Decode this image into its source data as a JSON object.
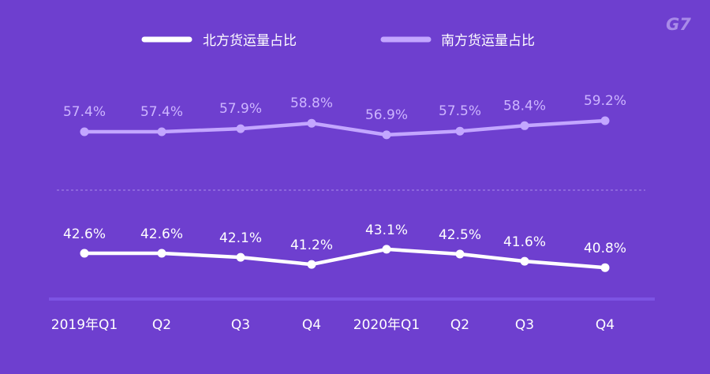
{
  "brand": {
    "logo_text": "G7"
  },
  "colors": {
    "background": "#6e3fcf",
    "north": "#ffffff",
    "south": "#c3a6ff",
    "south_label": "#cdb5ff",
    "divider": "#a98be8",
    "baseline": "#7c54e3",
    "logo": "#a98be8"
  },
  "chart_data": {
    "type": "line",
    "categories": [
      "2019年Q1",
      "Q2",
      "Q3",
      "Q4",
      "2020年Q1",
      "Q2",
      "Q3",
      "Q4"
    ],
    "series": [
      {
        "name": "北方货运量占比",
        "values": [
          42.6,
          42.6,
          42.1,
          41.2,
          43.1,
          42.5,
          41.6,
          40.8
        ],
        "labels": [
          "42.6%",
          "42.6%",
          "42.1%",
          "41.2%",
          "43.1%",
          "42.5%",
          "41.6%",
          "40.8%"
        ],
        "color": "#ffffff"
      },
      {
        "name": "南方货运量占比",
        "values": [
          57.4,
          57.4,
          57.9,
          58.8,
          56.9,
          57.5,
          58.4,
          59.2
        ],
        "labels": [
          "57.4%",
          "57.4%",
          "57.9%",
          "58.8%",
          "56.9%",
          "57.5%",
          "58.4%",
          "59.2%"
        ],
        "color": "#c3a6ff"
      }
    ],
    "legend": "top-center",
    "grid": false
  }
}
